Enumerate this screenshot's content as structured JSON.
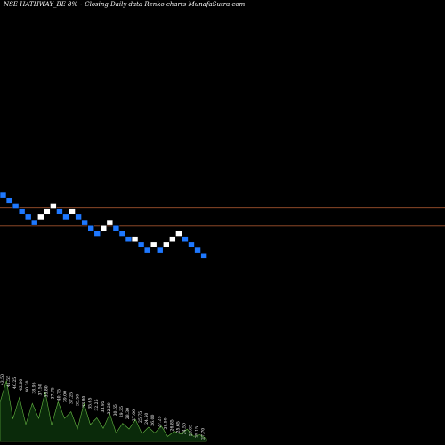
{
  "header": {
    "title": "NSE HATHWAY_BE 8%~  Closing Daily data  Renko  charts MunafaSutra.com"
  },
  "colors": {
    "background": "#000000",
    "up_brick": "#ffffff",
    "down_brick": "#1e78ff",
    "reference_line": "#a0522d",
    "volume_fill": "#0a2a0a",
    "volume_stroke": "#66bb44",
    "volume_label": "#ffffff"
  },
  "chart_data": {
    "type": "renko",
    "title": "NSE HATHWAY_BE 8%~  Closing Daily data  Renko  charts MunafaSutra.com",
    "bricks": [
      {
        "dir": "down",
        "level": 0
      },
      {
        "dir": "down",
        "level": 1
      },
      {
        "dir": "down",
        "level": 2
      },
      {
        "dir": "down",
        "level": 3
      },
      {
        "dir": "down",
        "level": 4
      },
      {
        "dir": "down",
        "level": 5
      },
      {
        "dir": "up",
        "level": 4
      },
      {
        "dir": "up",
        "level": 3
      },
      {
        "dir": "up",
        "level": 2
      },
      {
        "dir": "down",
        "level": 3
      },
      {
        "dir": "down",
        "level": 4
      },
      {
        "dir": "up",
        "level": 3
      },
      {
        "dir": "down",
        "level": 4
      },
      {
        "dir": "down",
        "level": 5
      },
      {
        "dir": "down",
        "level": 6
      },
      {
        "dir": "down",
        "level": 7
      },
      {
        "dir": "up",
        "level": 6
      },
      {
        "dir": "up",
        "level": 5
      },
      {
        "dir": "down",
        "level": 6
      },
      {
        "dir": "down",
        "level": 7
      },
      {
        "dir": "down",
        "level": 8
      },
      {
        "dir": "up",
        "level": 8
      },
      {
        "dir": "down",
        "level": 9
      },
      {
        "dir": "down",
        "level": 10
      },
      {
        "dir": "up",
        "level": 9
      },
      {
        "dir": "down",
        "level": 10
      },
      {
        "dir": "up",
        "level": 9
      },
      {
        "dir": "up",
        "level": 8
      },
      {
        "dir": "up",
        "level": 7
      },
      {
        "dir": "down",
        "level": 8
      },
      {
        "dir": "down",
        "level": 9
      },
      {
        "dir": "down",
        "level": 10
      },
      {
        "dir": "down",
        "level": 11
      }
    ],
    "reference_lines": [
      {
        "label": "upper",
        "brick_level": 2.35
      },
      {
        "label": "lower",
        "brick_level": 5.6
      }
    ],
    "volume_labels": [
      "43.50",
      "41.55",
      "40.25",
      "42.00",
      "40.20",
      "38.95",
      "37.50",
      "35.80",
      "37.75",
      "40.75",
      "39.00",
      "37.25",
      "35.50",
      "33.80",
      "35.65",
      "32.25",
      "33.95",
      "32.20",
      "30.65",
      "29.35",
      "28.30",
      "27.00",
      "25.75",
      "24.50",
      "26.00",
      "27.25",
      "28.50",
      "26.85",
      "25.65",
      "24.50",
      "26.05",
      "25.15",
      "27.70"
    ],
    "volume_profile": [
      58,
      92,
      35,
      70,
      28,
      64,
      40,
      88,
      30,
      75,
      45,
      60,
      26,
      82,
      38,
      55,
      32,
      70,
      22,
      50,
      36,
      66,
      24,
      48,
      30,
      58,
      20,
      44,
      34,
      62,
      28,
      40,
      18
    ]
  }
}
